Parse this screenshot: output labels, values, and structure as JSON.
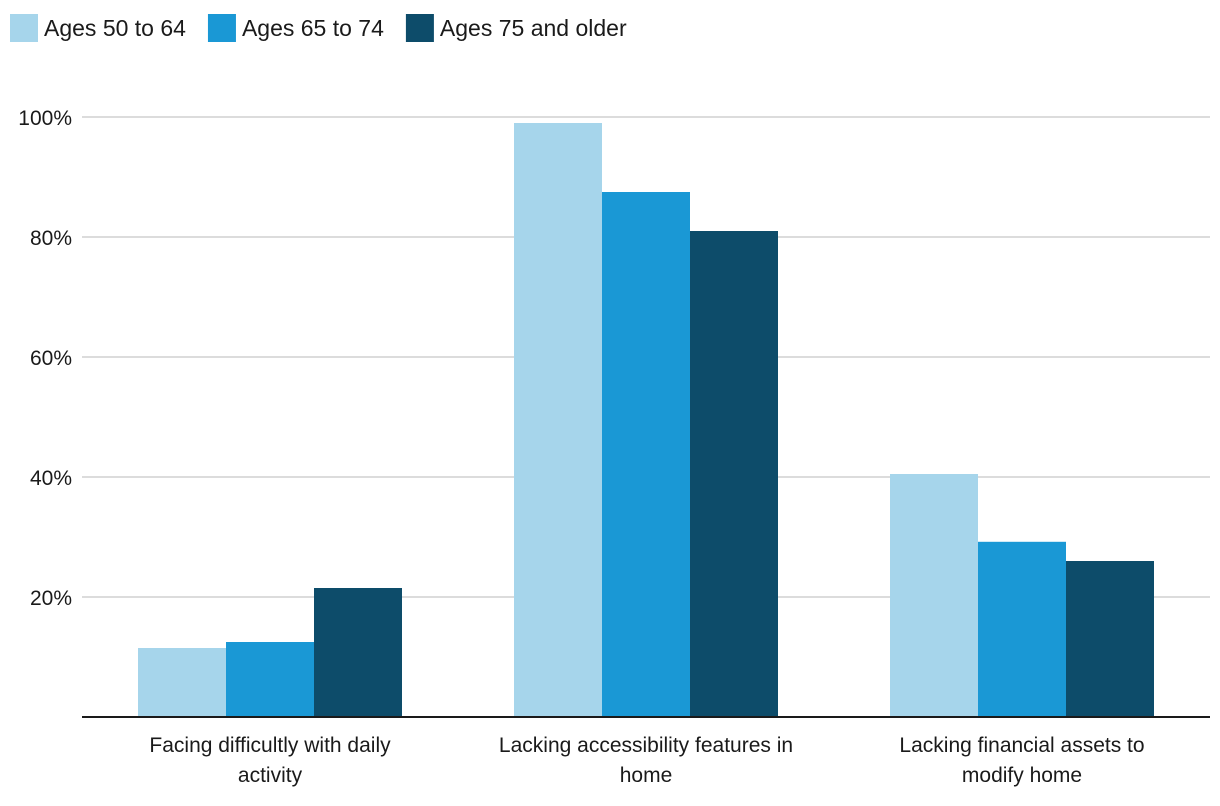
{
  "chart_data": {
    "type": "bar",
    "title": "",
    "xlabel": "",
    "ylabel": "",
    "ylim": [
      0,
      100
    ],
    "yticks": [
      20,
      40,
      60,
      80,
      100
    ],
    "ytick_labels": [
      "20%",
      "40%",
      "60%",
      "80%",
      "100%"
    ],
    "grid": true,
    "legend_position": "top-left",
    "categories": [
      [
        "Facing difficultly with daily",
        "activity"
      ],
      [
        "Lacking accessibility features in",
        "home"
      ],
      [
        "Lacking financial assets to",
        "modify home"
      ]
    ],
    "series": [
      {
        "name": "Ages 50 to 64",
        "color": "#a6d5eb",
        "values": [
          11.5,
          99,
          40.5
        ]
      },
      {
        "name": "Ages 65 to 74",
        "color": "#1a98d5",
        "values": [
          12.5,
          87.5,
          29.2
        ]
      },
      {
        "name": "Ages 75 and older",
        "color": "#0d4c6a",
        "values": [
          21.5,
          81,
          26
        ]
      }
    ]
  }
}
